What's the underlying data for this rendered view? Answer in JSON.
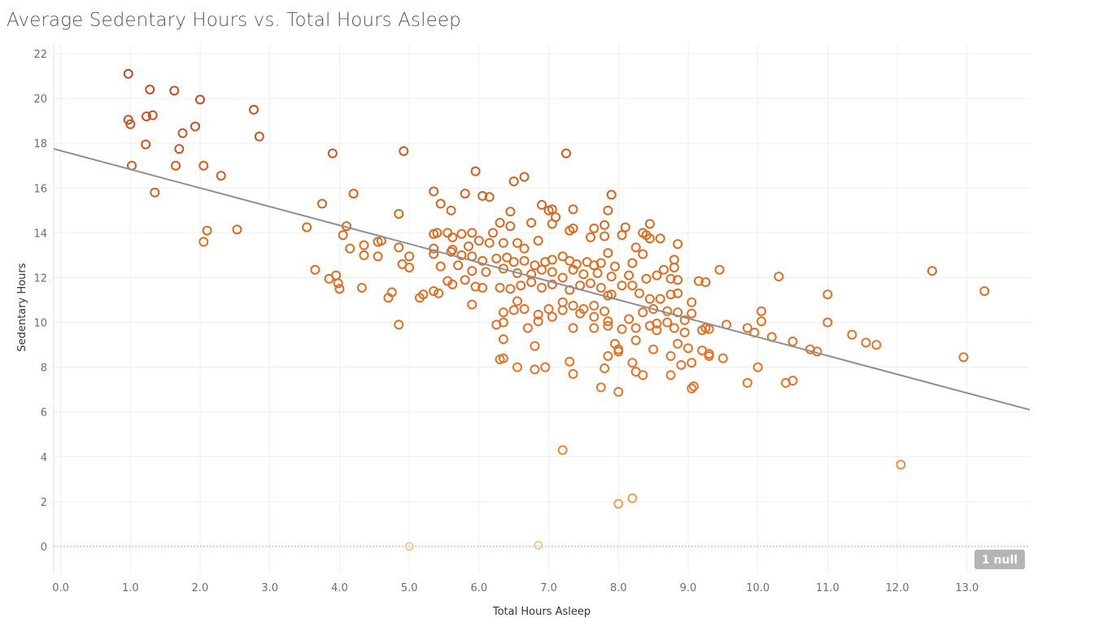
{
  "chart_data": {
    "type": "scatter",
    "title": "Average Sedentary Hours vs. Total Hours Asleep",
    "xlabel": "Total Hours Asleep",
    "ylabel": "Sedentary Hours",
    "xlim": [
      -0.1,
      13.9
    ],
    "ylim": [
      -1.2,
      22.4
    ],
    "xticks": [
      "0.0",
      "1.0",
      "2.0",
      "3.0",
      "4.0",
      "5.0",
      "6.0",
      "7.0",
      "8.0",
      "9.0",
      "10.0",
      "11.0",
      "12.0",
      "13.0"
    ],
    "yticks": [
      "0",
      "2",
      "4",
      "6",
      "8",
      "10",
      "12",
      "14",
      "16",
      "18",
      "20",
      "22"
    ],
    "grid": true,
    "marker": "open-circle",
    "color_scale": [
      "#f5b462",
      "#e9762b",
      "#de6a1e",
      "#b8442a"
    ],
    "trend_line": {
      "x": [
        -0.1,
        13.9
      ],
      "y": [
        17.75,
        6.1
      ],
      "color": "#8f8f8f"
    },
    "null_badge": "1 null",
    "points": [
      [
        0.97,
        21.1
      ],
      [
        1.28,
        20.4
      ],
      [
        1.63,
        20.35
      ],
      [
        2.0,
        19.95
      ],
      [
        2.77,
        19.5
      ],
      [
        0.97,
        19.05
      ],
      [
        1.0,
        18.85
      ],
      [
        1.23,
        19.2
      ],
      [
        1.32,
        19.25
      ],
      [
        1.93,
        18.75
      ],
      [
        1.75,
        18.45
      ],
      [
        2.85,
        18.3
      ],
      [
        1.22,
        17.95
      ],
      [
        1.7,
        17.75
      ],
      [
        1.02,
        17.0
      ],
      [
        1.65,
        17.0
      ],
      [
        2.05,
        17.0
      ],
      [
        2.3,
        16.55
      ],
      [
        1.35,
        15.8
      ],
      [
        2.1,
        14.1
      ],
      [
        2.05,
        13.6
      ],
      [
        2.53,
        14.15
      ],
      [
        3.9,
        17.55
      ],
      [
        4.92,
        17.65
      ],
      [
        7.25,
        17.55
      ],
      [
        5.95,
        16.75
      ],
      [
        6.5,
        16.3
      ],
      [
        6.65,
        16.5
      ],
      [
        4.2,
        15.75
      ],
      [
        3.75,
        15.3
      ],
      [
        5.35,
        15.85
      ],
      [
        5.8,
        15.75
      ],
      [
        6.05,
        15.65
      ],
      [
        6.15,
        15.6
      ],
      [
        7.9,
        15.7
      ],
      [
        5.45,
        15.3
      ],
      [
        6.9,
        15.25
      ],
      [
        4.85,
        14.85
      ],
      [
        5.6,
        15.0
      ],
      [
        6.45,
        14.95
      ],
      [
        7.05,
        15.05
      ],
      [
        7.0,
        15.0
      ],
      [
        7.35,
        15.05
      ],
      [
        7.85,
        15.0
      ],
      [
        7.1,
        14.7
      ],
      [
        3.53,
        14.25
      ],
      [
        4.1,
        14.3
      ],
      [
        4.05,
        13.9
      ],
      [
        4.35,
        13.45
      ],
      [
        4.6,
        13.65
      ],
      [
        4.15,
        13.3
      ],
      [
        4.55,
        13.6
      ],
      [
        4.85,
        13.35
      ],
      [
        5.35,
        13.95
      ],
      [
        5.4,
        14.0
      ],
      [
        5.55,
        14.0
      ],
      [
        5.62,
        13.8
      ],
      [
        5.75,
        13.95
      ],
      [
        5.9,
        14.0
      ],
      [
        6.3,
        14.45
      ],
      [
        6.45,
        14.3
      ],
      [
        6.75,
        14.45
      ],
      [
        7.05,
        14.4
      ],
      [
        7.3,
        14.1
      ],
      [
        7.35,
        14.2
      ],
      [
        7.65,
        14.2
      ],
      [
        7.8,
        14.35
      ],
      [
        8.1,
        14.25
      ],
      [
        8.45,
        14.4
      ],
      [
        8.35,
        14.0
      ],
      [
        8.4,
        13.9
      ],
      [
        8.6,
        13.75
      ],
      [
        8.45,
        13.75
      ],
      [
        8.25,
        13.35
      ],
      [
        8.85,
        13.5
      ],
      [
        8.05,
        13.9
      ],
      [
        7.8,
        13.85
      ],
      [
        7.6,
        13.8
      ],
      [
        6.2,
        14.0
      ],
      [
        6.0,
        13.65
      ],
      [
        6.35,
        13.55
      ],
      [
        6.85,
        13.65
      ],
      [
        6.55,
        13.55
      ],
      [
        5.35,
        13.3
      ],
      [
        5.62,
        13.25
      ],
      [
        5.85,
        13.4
      ],
      [
        6.15,
        13.55
      ],
      [
        6.65,
        13.3
      ],
      [
        7.85,
        13.1
      ],
      [
        8.35,
        13.05
      ],
      [
        8.8,
        12.8
      ],
      [
        4.35,
        13.0
      ],
      [
        4.55,
        12.95
      ],
      [
        5.0,
        12.95
      ],
      [
        5.35,
        13.05
      ],
      [
        5.6,
        13.15
      ],
      [
        5.75,
        13.0
      ],
      [
        5.9,
        12.95
      ],
      [
        6.05,
        12.75
      ],
      [
        6.25,
        12.85
      ],
      [
        6.4,
        12.9
      ],
      [
        6.5,
        12.7
      ],
      [
        6.65,
        12.75
      ],
      [
        6.8,
        12.55
      ],
      [
        6.95,
        12.7
      ],
      [
        7.05,
        12.8
      ],
      [
        7.2,
        12.95
      ],
      [
        7.3,
        12.75
      ],
      [
        7.4,
        12.6
      ],
      [
        7.55,
        12.7
      ],
      [
        7.65,
        12.55
      ],
      [
        7.75,
        12.65
      ],
      [
        7.95,
        12.5
      ],
      [
        8.2,
        12.65
      ],
      [
        8.65,
        12.35
      ],
      [
        8.8,
        12.45
      ],
      [
        9.45,
        12.35
      ],
      [
        4.9,
        12.6
      ],
      [
        5.0,
        12.45
      ],
      [
        5.45,
        12.5
      ],
      [
        5.7,
        12.55
      ],
      [
        5.9,
        12.3
      ],
      [
        6.1,
        12.25
      ],
      [
        6.35,
        12.4
      ],
      [
        6.55,
        12.2
      ],
      [
        6.75,
        12.15
      ],
      [
        6.9,
        12.35
      ],
      [
        7.05,
        12.25
      ],
      [
        7.2,
        12.0
      ],
      [
        7.35,
        12.35
      ],
      [
        7.5,
        12.15
      ],
      [
        7.7,
        12.2
      ],
      [
        7.9,
        12.05
      ],
      [
        8.15,
        12.1
      ],
      [
        8.4,
        11.95
      ],
      [
        8.55,
        12.1
      ],
      [
        8.75,
        11.95
      ],
      [
        8.85,
        11.9
      ],
      [
        9.15,
        11.85
      ],
      [
        9.25,
        11.8
      ],
      [
        10.3,
        12.05
      ],
      [
        3.65,
        12.35
      ],
      [
        3.85,
        11.95
      ],
      [
        3.95,
        12.1
      ],
      [
        3.98,
        11.75
      ],
      [
        4.0,
        11.5
      ],
      [
        4.32,
        11.55
      ],
      [
        4.75,
        11.35
      ],
      [
        4.7,
        11.1
      ],
      [
        5.2,
        11.25
      ],
      [
        5.15,
        11.1
      ],
      [
        5.35,
        11.4
      ],
      [
        5.42,
        11.3
      ],
      [
        5.62,
        11.7
      ],
      [
        5.55,
        11.85
      ],
      [
        5.8,
        11.9
      ],
      [
        5.95,
        11.6
      ],
      [
        6.05,
        11.55
      ],
      [
        6.3,
        11.55
      ],
      [
        6.45,
        11.5
      ],
      [
        6.6,
        11.65
      ],
      [
        6.75,
        11.8
      ],
      [
        6.9,
        11.55
      ],
      [
        7.05,
        11.7
      ],
      [
        7.3,
        11.45
      ],
      [
        7.45,
        11.65
      ],
      [
        7.6,
        11.75
      ],
      [
        7.75,
        11.55
      ],
      [
        7.9,
        11.25
      ],
      [
        8.05,
        11.65
      ],
      [
        8.3,
        11.3
      ],
      [
        8.45,
        11.05
      ],
      [
        8.6,
        11.05
      ],
      [
        8.75,
        11.25
      ],
      [
        8.85,
        11.3
      ],
      [
        9.05,
        10.9
      ],
      [
        8.2,
        11.65
      ],
      [
        7.85,
        11.2
      ],
      [
        6.55,
        10.95
      ],
      [
        6.65,
        10.6
      ],
      [
        6.85,
        10.35
      ],
      [
        7.0,
        10.6
      ],
      [
        7.2,
        10.9
      ],
      [
        7.35,
        10.75
      ],
      [
        7.5,
        10.6
      ],
      [
        7.65,
        10.75
      ],
      [
        7.8,
        10.5
      ],
      [
        8.35,
        10.45
      ],
      [
        8.5,
        10.6
      ],
      [
        8.7,
        10.5
      ],
      [
        8.85,
        10.45
      ],
      [
        9.05,
        10.4
      ],
      [
        10.05,
        10.5
      ],
      [
        11.0,
        11.25
      ],
      [
        5.9,
        10.8
      ],
      [
        6.35,
        10.45
      ],
      [
        6.5,
        10.55
      ],
      [
        6.85,
        10.05
      ],
      [
        7.05,
        10.25
      ],
      [
        7.2,
        10.55
      ],
      [
        7.45,
        10.4
      ],
      [
        7.65,
        10.25
      ],
      [
        7.85,
        10.05
      ],
      [
        8.15,
        10.15
      ],
      [
        8.45,
        9.85
      ],
      [
        8.55,
        9.95
      ],
      [
        8.7,
        10.0
      ],
      [
        8.95,
        10.1
      ],
      [
        9.25,
        9.75
      ],
      [
        9.55,
        9.9
      ],
      [
        9.85,
        9.75
      ],
      [
        10.05,
        10.05
      ],
      [
        11.0,
        10.0
      ],
      [
        4.85,
        9.9
      ],
      [
        6.25,
        9.9
      ],
      [
        6.35,
        10.0
      ],
      [
        6.7,
        9.75
      ],
      [
        7.35,
        9.75
      ],
      [
        7.65,
        9.75
      ],
      [
        7.85,
        9.85
      ],
      [
        8.05,
        9.7
      ],
      [
        8.25,
        9.75
      ],
      [
        8.55,
        9.65
      ],
      [
        8.8,
        9.75
      ],
      [
        8.95,
        9.55
      ],
      [
        9.2,
        9.65
      ],
      [
        9.3,
        9.7
      ],
      [
        9.95,
        9.55
      ],
      [
        10.2,
        9.35
      ],
      [
        10.5,
        9.15
      ],
      [
        11.35,
        9.45
      ],
      [
        11.55,
        9.1
      ],
      [
        11.7,
        9.0
      ],
      [
        6.35,
        9.25
      ],
      [
        6.8,
        8.95
      ],
      [
        7.95,
        9.05
      ],
      [
        8.0,
        8.8
      ],
      [
        8.25,
        9.2
      ],
      [
        8.5,
        8.8
      ],
      [
        8.85,
        9.05
      ],
      [
        9.0,
        8.85
      ],
      [
        9.2,
        8.75
      ],
      [
        9.3,
        8.6
      ],
      [
        10.75,
        8.8
      ],
      [
        10.85,
        8.7
      ],
      [
        12.95,
        8.45
      ],
      [
        6.3,
        8.35
      ],
      [
        6.35,
        8.4
      ],
      [
        7.3,
        8.25
      ],
      [
        7.85,
        8.5
      ],
      [
        8.0,
        8.7
      ],
      [
        8.2,
        8.2
      ],
      [
        8.75,
        8.5
      ],
      [
        8.9,
        8.1
      ],
      [
        9.05,
        8.2
      ],
      [
        9.3,
        8.5
      ],
      [
        9.5,
        8.4
      ],
      [
        6.55,
        8.0
      ],
      [
        6.8,
        7.9
      ],
      [
        6.95,
        8.0
      ],
      [
        7.35,
        7.7
      ],
      [
        7.8,
        7.95
      ],
      [
        8.25,
        7.8
      ],
      [
        8.35,
        7.65
      ],
      [
        8.75,
        7.65
      ],
      [
        10.0,
        8.0
      ],
      [
        7.75,
        7.1
      ],
      [
        8.0,
        6.9
      ],
      [
        9.05,
        7.05
      ],
      [
        9.08,
        7.15
      ],
      [
        9.85,
        7.3
      ],
      [
        10.4,
        7.3
      ],
      [
        10.5,
        7.4
      ],
      [
        12.5,
        12.3
      ],
      [
        13.25,
        11.4
      ],
      [
        7.2,
        4.3
      ],
      [
        12.05,
        3.65
      ],
      [
        8.0,
        1.9
      ],
      [
        8.2,
        2.15
      ],
      [
        5.0,
        0.0
      ],
      [
        6.85,
        0.05
      ]
    ]
  }
}
